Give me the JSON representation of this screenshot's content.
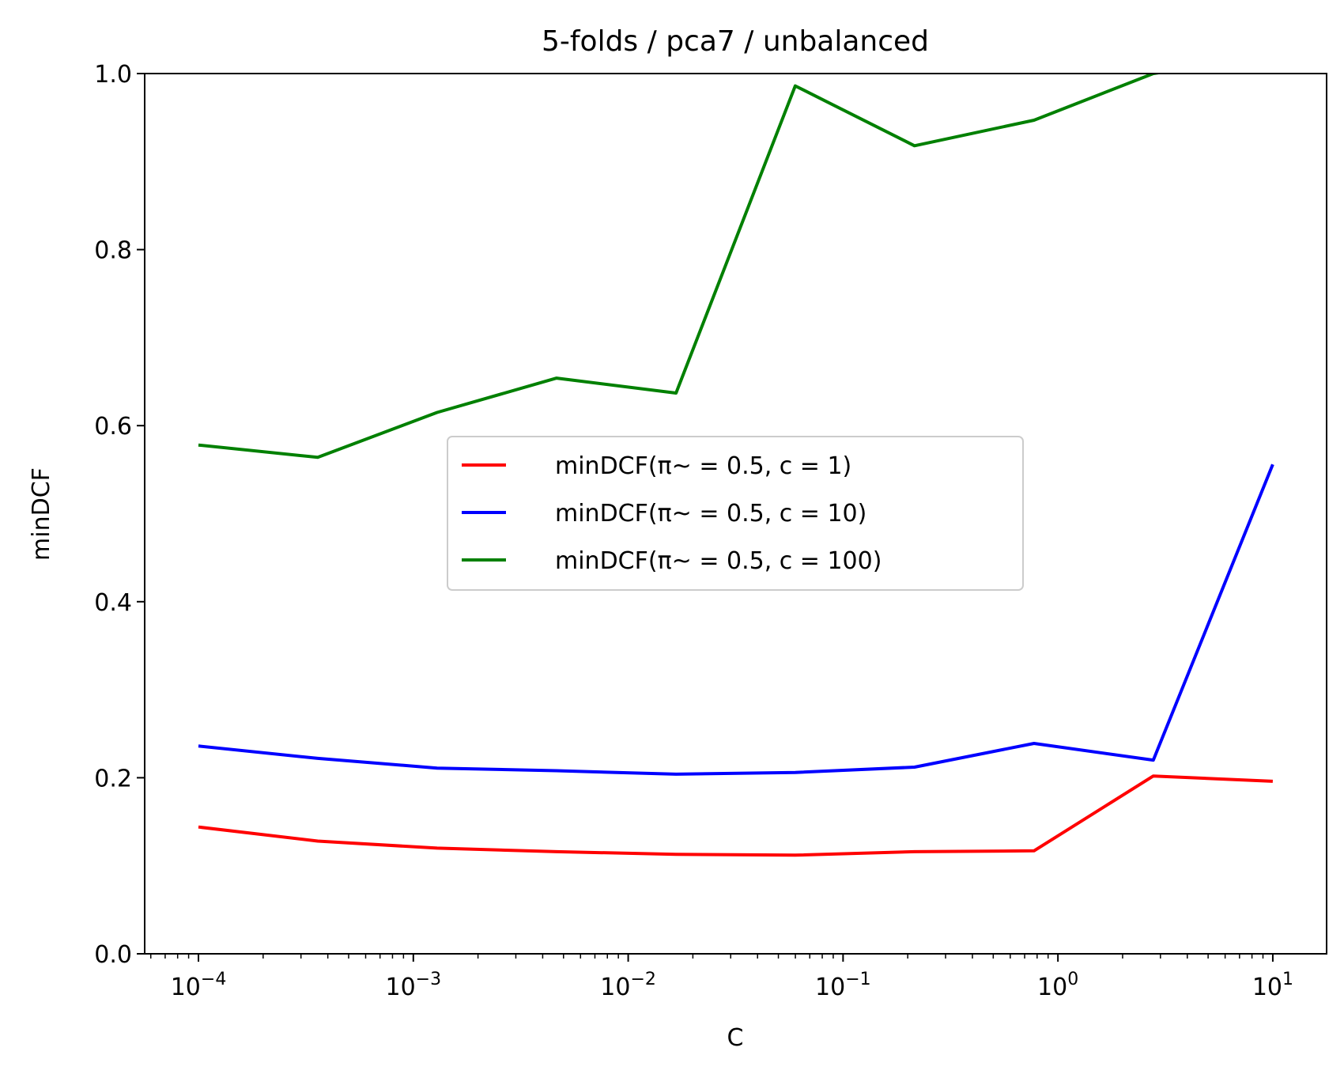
{
  "chart_data": {
    "type": "line",
    "title": "5-folds / pca7 / unbalanced",
    "xlabel": "C",
    "ylabel": "minDCF",
    "xscale": "log",
    "xlim": [
      5.62e-05,
      17.8
    ],
    "ylim": [
      0.0,
      1.0
    ],
    "grid": false,
    "legend_position": "center",
    "x": [
      0.0001,
      0.000359,
      0.00129,
      0.00464,
      0.0167,
      0.0599,
      0.215,
      0.774,
      2.78,
      10
    ],
    "series": [
      {
        "name": "minDCF(π~ = 0.5, c = 1)",
        "color": "#ff0000",
        "values": [
          0.144,
          0.128,
          0.12,
          0.116,
          0.113,
          0.112,
          0.116,
          0.117,
          0.202,
          0.196
        ]
      },
      {
        "name": "minDCF(π~ = 0.5, c = 10)",
        "color": "#0000ff",
        "values": [
          0.236,
          0.222,
          0.211,
          0.208,
          0.204,
          0.206,
          0.212,
          0.239,
          0.22,
          0.556
        ]
      },
      {
        "name": "minDCF(π~ = 0.5, c = 100)",
        "color": "#008000",
        "values": [
          0.578,
          0.564,
          0.615,
          0.654,
          0.637,
          0.986,
          0.918,
          0.947,
          1.0,
          1.02
        ]
      }
    ],
    "y_ticks": [
      "0.0",
      "0.2",
      "0.4",
      "0.6",
      "0.8",
      "1.0"
    ],
    "x_ticks": [
      {
        "base": "10",
        "exp": "−4"
      },
      {
        "base": "10",
        "exp": "−3"
      },
      {
        "base": "10",
        "exp": "−2"
      },
      {
        "base": "10",
        "exp": "−1"
      },
      {
        "base": "10",
        "exp": "0"
      },
      {
        "base": "10",
        "exp": "1"
      }
    ]
  }
}
